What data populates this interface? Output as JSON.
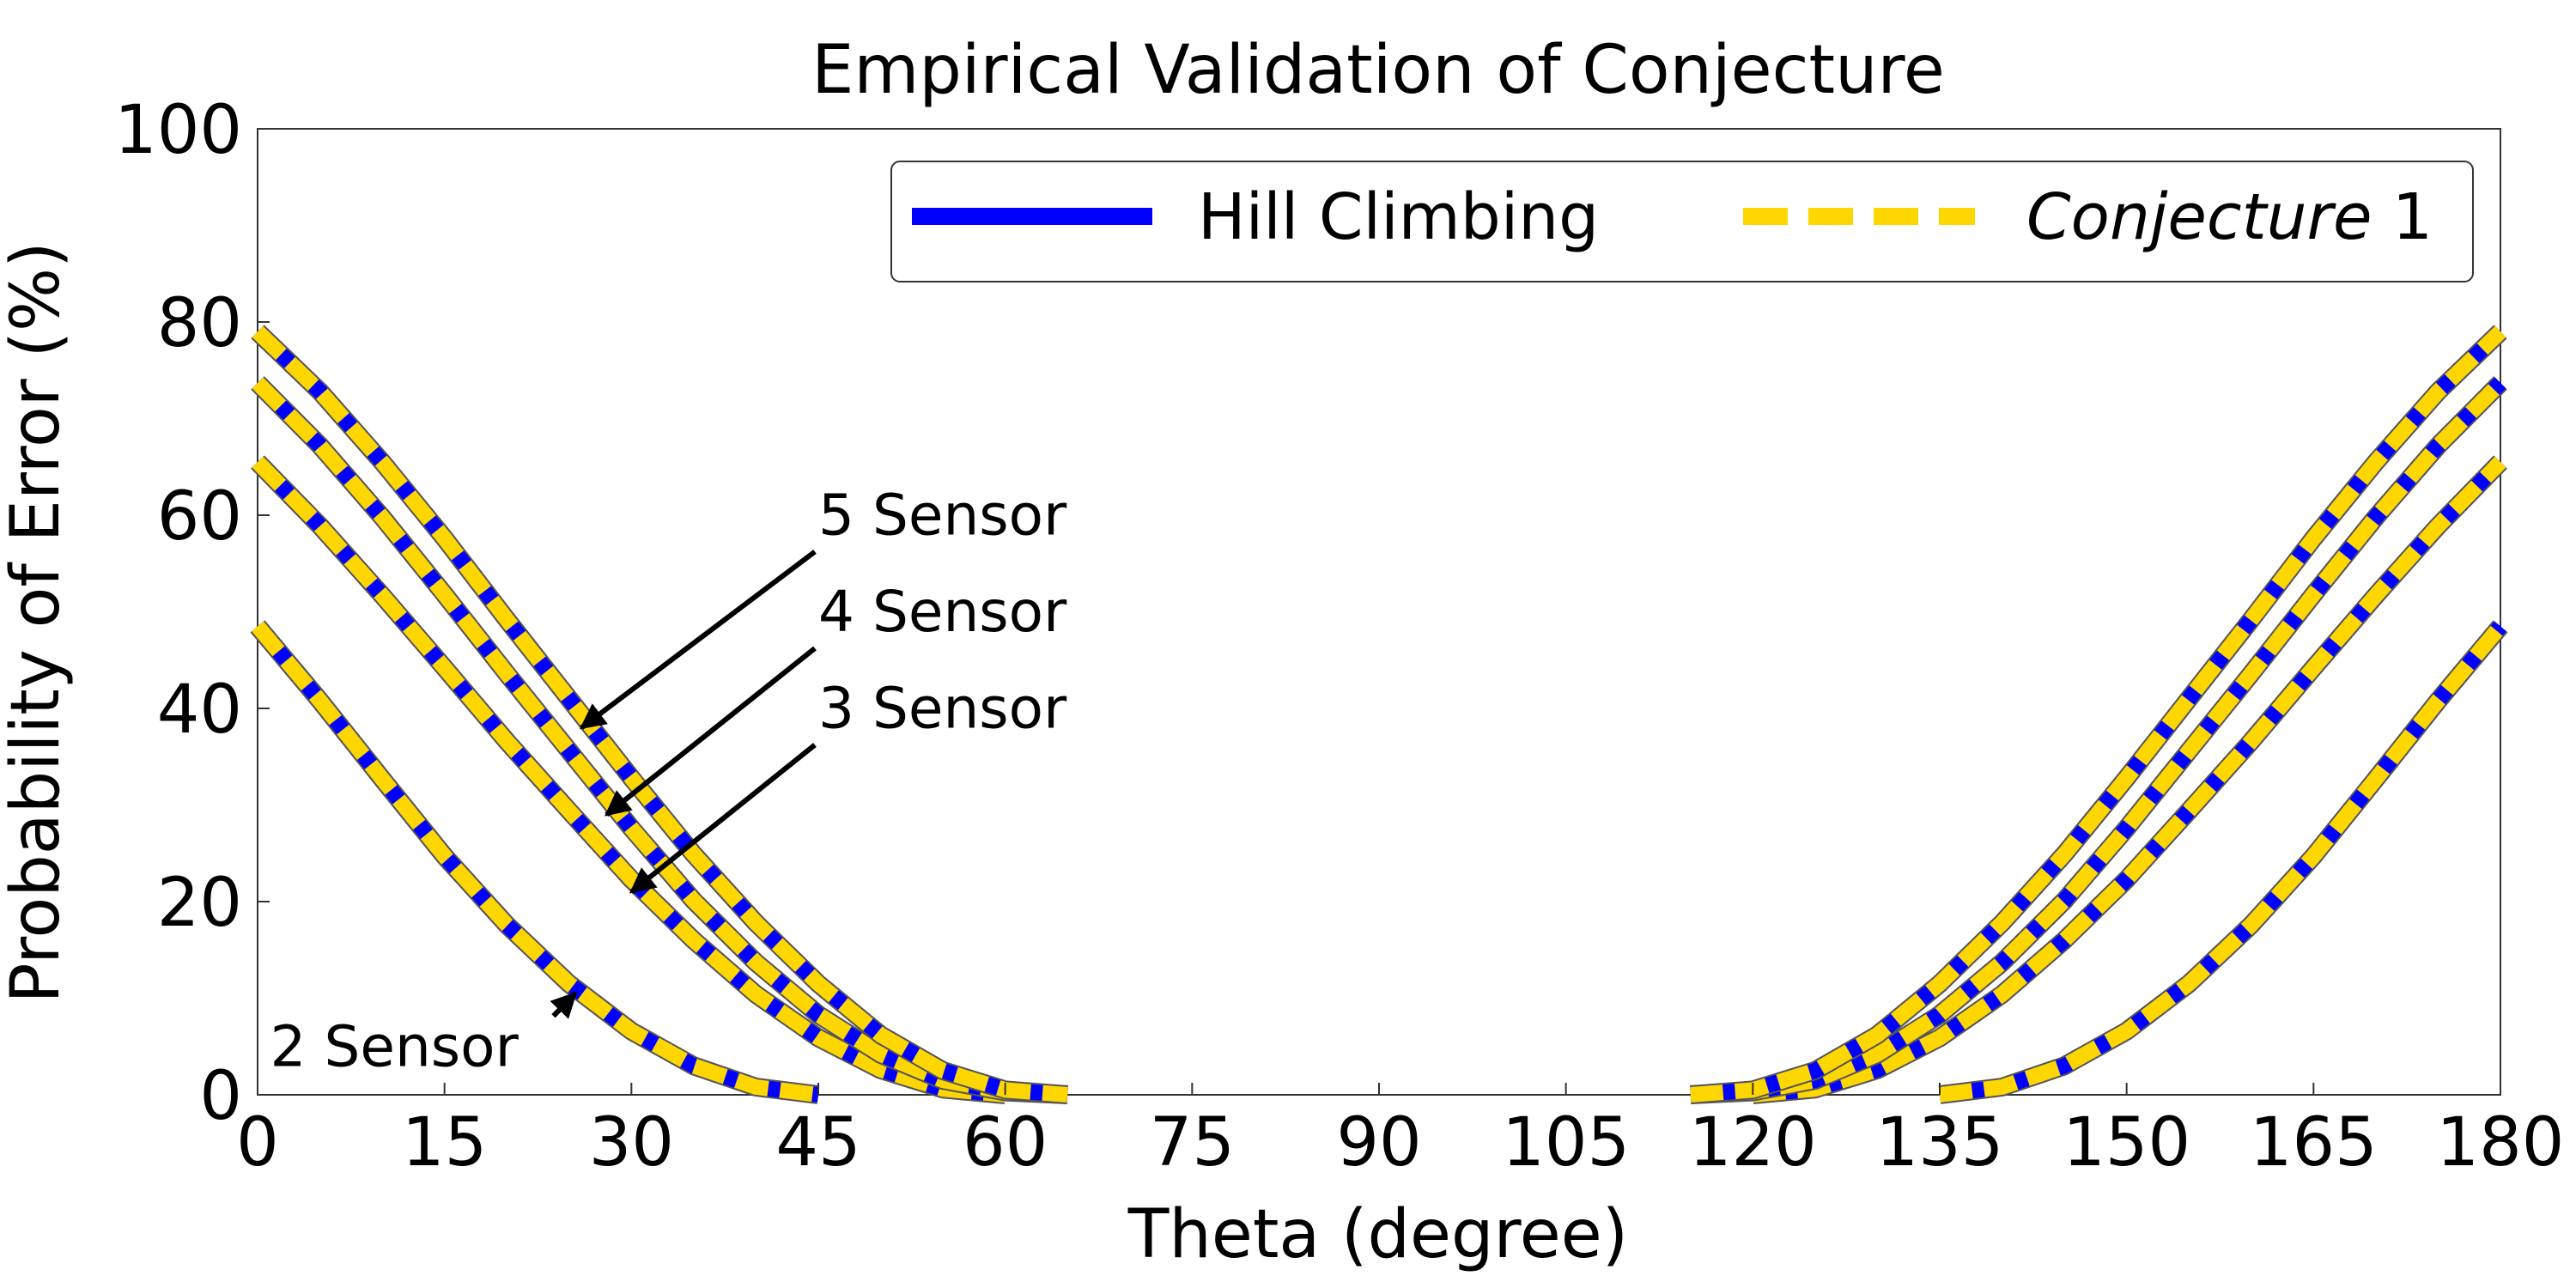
{
  "chart_data": {
    "type": "line",
    "title": "Empirical Validation of Conjecture",
    "xlabel": "Theta (degree)",
    "ylabel": "Probability of Error (%)",
    "xlim": [
      0,
      180
    ],
    "ylim": [
      0,
      100
    ],
    "xticks": [
      0,
      15,
      30,
      45,
      60,
      75,
      90,
      105,
      120,
      135,
      150,
      165,
      180
    ],
    "yticks": [
      0,
      20,
      40,
      60,
      80,
      100
    ],
    "grid": false,
    "legend_position": "top-right",
    "legend": [
      {
        "label": "Hill Climbing",
        "style": "solid",
        "color": "#0000ff"
      },
      {
        "label_italic": "Conjecture",
        "label_rest": " 1",
        "style": "dashed",
        "color": "#ffd700"
      }
    ],
    "series": [
      {
        "sensors": 2,
        "x": [
          0,
          5,
          10,
          15,
          20,
          25,
          30,
          35,
          40,
          45,
          135,
          140,
          145,
          150,
          155,
          160,
          165,
          170,
          175,
          180
        ],
        "values": [
          48.5,
          40.8,
          32.7,
          24.7,
          17.6,
          11.5,
          6.6,
          3.0,
          0.8,
          0.0,
          0.0,
          0.8,
          3.0,
          6.6,
          11.5,
          17.6,
          24.7,
          32.7,
          40.8,
          48.5
        ]
      },
      {
        "sensors": 3,
        "x": [
          0,
          5,
          10,
          15,
          20,
          25,
          30,
          35,
          40,
          45,
          50,
          55,
          60,
          120,
          125,
          130,
          135,
          140,
          145,
          150,
          155,
          160,
          165,
          170,
          175,
          180
        ],
        "values": [
          65.5,
          58.9,
          51.7,
          44.2,
          36.6,
          29.4,
          22.3,
          16.0,
          10.4,
          5.9,
          2.6,
          0.6,
          0.0,
          0.0,
          0.6,
          2.6,
          5.9,
          10.4,
          16.0,
          22.3,
          29.4,
          36.6,
          44.2,
          51.7,
          58.9,
          65.5
        ]
      },
      {
        "sensors": 4,
        "x": [
          0,
          5,
          10,
          15,
          20,
          25,
          30,
          35,
          40,
          45,
          50,
          55,
          60,
          65,
          115,
          120,
          125,
          130,
          135,
          140,
          145,
          150,
          155,
          160,
          165,
          170,
          175,
          180
        ],
        "values": [
          73.7,
          67.2,
          59.8,
          51.8,
          43.6,
          35.6,
          27.6,
          20.1,
          13.7,
          8.3,
          4.2,
          1.5,
          0.3,
          0.0,
          0.0,
          0.3,
          1.5,
          4.2,
          8.3,
          13.7,
          20.1,
          27.6,
          35.6,
          43.6,
          51.8,
          59.8,
          67.2,
          73.7
        ]
      },
      {
        "sensors": 5,
        "x": [
          0,
          5,
          10,
          15,
          20,
          25,
          30,
          35,
          40,
          45,
          50,
          55,
          60,
          65,
          115,
          120,
          125,
          130,
          135,
          140,
          145,
          150,
          155,
          160,
          165,
          170,
          175,
          180
        ],
        "values": [
          79.0,
          72.8,
          65.5,
          57.6,
          49.2,
          41.0,
          32.8,
          24.9,
          17.8,
          11.5,
          6.2,
          2.5,
          0.5,
          0.0,
          0.0,
          0.5,
          2.5,
          6.2,
          11.5,
          17.8,
          24.9,
          32.8,
          41.0,
          49.2,
          57.6,
          65.5,
          72.8,
          79.0
        ]
      }
    ],
    "annotations": [
      {
        "text": "5 Sensor",
        "target": [
          26,
          38
        ],
        "label_at": [
          45,
          58
        ]
      },
      {
        "text": "4 Sensor",
        "target": [
          28,
          29
        ],
        "label_at": [
          45,
          48
        ]
      },
      {
        "text": "3 Sensor",
        "target": [
          30,
          21
        ],
        "label_at": [
          45,
          38
        ]
      },
      {
        "text": "2 Sensor",
        "target": [
          25.5,
          10.5
        ],
        "label_at": [
          1,
          3
        ]
      }
    ]
  }
}
